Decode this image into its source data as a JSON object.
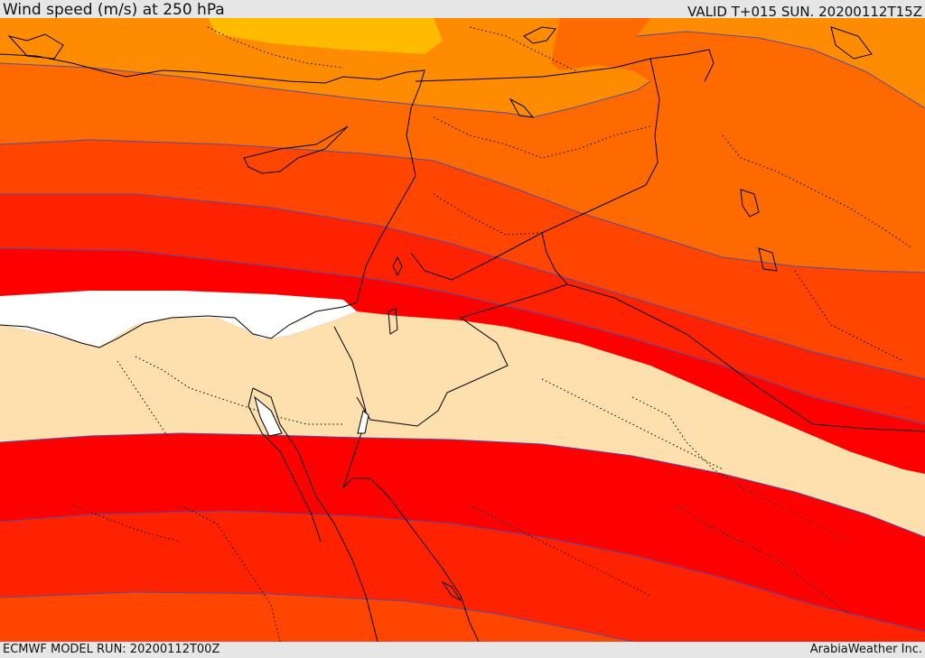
{
  "header": {
    "title": "Wind speed (m/s) at 250 hPa",
    "valid_time": "VALID T+015 SUN. 20200112T15Z"
  },
  "footer": {
    "model_run": "ECMWF MODEL RUN: 20200112T00Z",
    "credit": "ArabiaWeather Inc."
  },
  "colors": {
    "band_amber": "#ffbb00",
    "band_orange_light": "#ff8c00",
    "band_orange": "#ff6a00",
    "band_orange_red": "#ff4500",
    "band_red_orange": "#ff2200",
    "band_red": "#ff0000",
    "band_pale": "#fde0ad",
    "band_white": "#ffffff",
    "contour_line": "#5a4aa0",
    "borders": "#000000"
  }
}
